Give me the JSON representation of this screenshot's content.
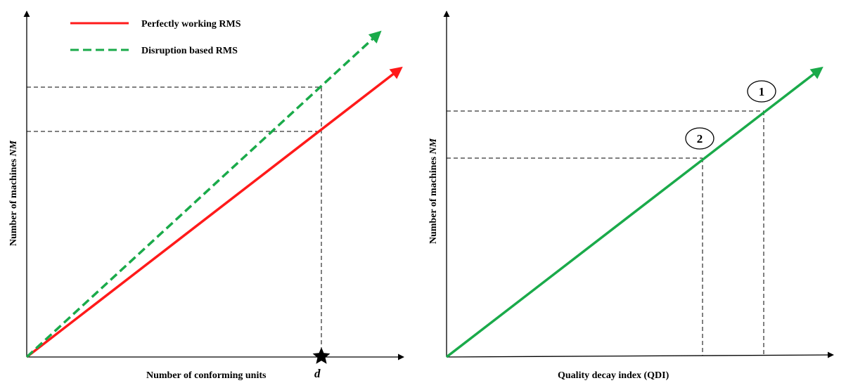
{
  "left_panel": {
    "ylabel": "Number of machines",
    "ylabel_var": "NM",
    "xlabel": "Number of conforming units",
    "x_marker_label": "d",
    "legend": [
      {
        "label": "Perfectly working RMS",
        "color": "#ff1a1a",
        "style": "solid"
      },
      {
        "label": "Disruption based RMS",
        "color": "#1aaa4a",
        "style": "dashed"
      }
    ]
  },
  "right_panel": {
    "ylabel": "Number of machines",
    "ylabel_var": "NM",
    "xlabel": "Quality decay index (QDI)",
    "points": [
      {
        "label": "1"
      },
      {
        "label": "2"
      }
    ],
    "line_color": "#1aaa4a"
  },
  "icons": {
    "marker": "star-icon"
  }
}
